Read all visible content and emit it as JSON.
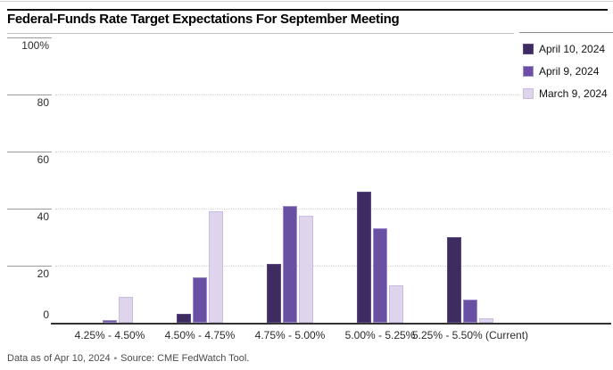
{
  "title": "Federal-Funds Rate Target Expectations For September Meeting",
  "footer": {
    "data_as_of": "Data as of Apr 10, 2024",
    "separator": "▪",
    "source": "Source: CME FedWatch Tool."
  },
  "colors": {
    "text": "#2b2b2b",
    "muted_text": "#4a4a4a",
    "axis_line": "#333333",
    "tick_line": "#9a9a9a",
    "grid_dots": "#d4d4d4",
    "top_rule": "#111111",
    "hairline": "#c4c4c4"
  },
  "chart_data": {
    "type": "bar",
    "title": "Federal-Funds Rate Target Expectations For September Meeting",
    "categories": [
      "4.25% - 4.50%",
      "4.50% - 4.75%",
      "4.75% - 5.00%",
      "5.00% - 5.25%",
      "5.25% - 5.50% (Current)"
    ],
    "series": [
      {
        "name": "April 10, 2024",
        "color": "#3e2b60",
        "border": "#5a4884",
        "values": [
          0,
          3,
          20.5,
          46,
          30
        ]
      },
      {
        "name": "April 9, 2024",
        "color": "#6950a3",
        "border": "#9e8dca",
        "values": [
          1,
          16,
          41,
          33,
          8
        ]
      },
      {
        "name": "March 9, 2024",
        "color": "#ded5ec",
        "border": "#c8bde0",
        "values": [
          9,
          39,
          37.5,
          13,
          1.5
        ]
      }
    ],
    "xlabel": "",
    "ylabel": "",
    "ylim": [
      0,
      100
    ],
    "yticks": [
      {
        "value": 100,
        "label": "100%"
      },
      {
        "value": 80,
        "label": "80"
      },
      {
        "value": 60,
        "label": "60"
      },
      {
        "value": 40,
        "label": "40"
      },
      {
        "value": 20,
        "label": "20"
      },
      {
        "value": 0,
        "label": "0"
      }
    ],
    "grid": "dotted horizontal lines at 20, 40, 60, 80",
    "legend_position": "top-right"
  }
}
